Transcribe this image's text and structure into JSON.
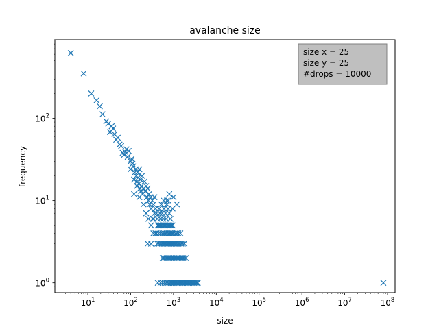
{
  "chart_data": {
    "type": "scatter",
    "title": "avalanche size",
    "xlabel": "size",
    "ylabel": "frequency",
    "xscale": "log",
    "yscale": "log",
    "xlim": [
      1.7,
      150000000
    ],
    "ylim": [
      0.76,
      900
    ],
    "xticks": [
      {
        "value": 10,
        "base": "10",
        "exp": "1"
      },
      {
        "value": 100,
        "base": "10",
        "exp": "2"
      },
      {
        "value": 1000,
        "base": "10",
        "exp": "3"
      },
      {
        "value": 10000,
        "base": "10",
        "exp": "4"
      },
      {
        "value": 100000,
        "base": "10",
        "exp": "5"
      },
      {
        "value": 1000000,
        "base": "10",
        "exp": "6"
      },
      {
        "value": 10000000,
        "base": "10",
        "exp": "7"
      },
      {
        "value": 100000000,
        "base": "10",
        "exp": "8"
      }
    ],
    "yticks": [
      {
        "value": 1,
        "base": "10",
        "exp": "0"
      },
      {
        "value": 10,
        "base": "10",
        "exp": "1"
      },
      {
        "value": 100,
        "base": "10",
        "exp": "2"
      }
    ],
    "marker": "x",
    "color": "#1f77b4",
    "annotation": {
      "location": "upper right",
      "lines": [
        "size x = 25",
        "size y = 25",
        "#drops = 10000"
      ],
      "background": "#bfbfbf"
    },
    "points": [
      [
        4,
        620
      ],
      [
        8,
        350
      ],
      [
        12,
        200
      ],
      [
        16,
        165
      ],
      [
        19,
        140
      ],
      [
        22,
        112
      ],
      [
        27,
        92
      ],
      [
        30,
        86
      ],
      [
        33,
        68
      ],
      [
        36,
        80
      ],
      [
        39,
        75
      ],
      [
        42,
        64
      ],
      [
        46,
        55
      ],
      [
        50,
        58
      ],
      [
        55,
        48
      ],
      [
        60,
        46
      ],
      [
        65,
        38
      ],
      [
        70,
        36
      ],
      [
        75,
        39
      ],
      [
        80,
        42
      ],
      [
        85,
        34
      ],
      [
        90,
        40
      ],
      [
        100,
        30
      ],
      [
        105,
        32
      ],
      [
        110,
        28
      ],
      [
        115,
        26
      ],
      [
        120,
        18
      ],
      [
        125,
        22
      ],
      [
        130,
        24
      ],
      [
        135,
        20
      ],
      [
        140,
        17
      ],
      [
        145,
        22
      ],
      [
        150,
        19
      ],
      [
        155,
        16
      ],
      [
        160,
        24
      ],
      [
        165,
        14
      ],
      [
        170,
        18
      ],
      [
        175,
        13
      ],
      [
        180,
        15
      ],
      [
        185,
        20
      ],
      [
        190,
        12
      ],
      [
        200,
        14
      ],
      [
        210,
        17
      ],
      [
        220,
        13
      ],
      [
        230,
        15
      ],
      [
        240,
        11
      ],
      [
        250,
        14
      ],
      [
        260,
        10
      ],
      [
        270,
        12
      ],
      [
        280,
        9
      ],
      [
        290,
        11
      ],
      [
        300,
        8
      ],
      [
        320,
        10
      ],
      [
        340,
        9
      ],
      [
        360,
        11
      ],
      [
        100,
        24
      ],
      [
        120,
        12
      ],
      [
        140,
        15
      ],
      [
        160,
        11
      ],
      [
        200,
        9
      ],
      [
        230,
        7
      ],
      [
        260,
        6
      ],
      [
        300,
        5
      ],
      [
        340,
        6
      ],
      [
        380,
        4
      ],
      [
        250,
        3
      ],
      [
        300,
        3
      ],
      [
        330,
        6
      ],
      [
        360,
        7
      ],
      [
        380,
        8
      ],
      [
        400,
        7
      ],
      [
        420,
        6
      ],
      [
        440,
        5
      ],
      [
        460,
        8
      ],
      [
        480,
        7
      ],
      [
        500,
        6
      ],
      [
        520,
        9
      ],
      [
        550,
        7
      ],
      [
        580,
        6
      ],
      [
        600,
        8
      ],
      [
        630,
        5
      ],
      [
        650,
        7
      ],
      [
        680,
        6
      ],
      [
        700,
        9
      ],
      [
        750,
        8
      ],
      [
        800,
        7
      ],
      [
        850,
        6
      ],
      [
        900,
        5
      ],
      [
        950,
        8
      ],
      [
        430,
        5
      ],
      [
        460,
        5
      ],
      [
        490,
        5
      ],
      [
        520,
        5
      ],
      [
        560,
        5
      ],
      [
        600,
        5
      ],
      [
        650,
        5
      ],
      [
        700,
        5
      ],
      [
        750,
        5
      ],
      [
        800,
        5
      ],
      [
        850,
        5
      ],
      [
        900,
        5
      ],
      [
        950,
        5
      ],
      [
        340,
        4
      ],
      [
        400,
        4
      ],
      [
        450,
        4
      ],
      [
        500,
        4
      ],
      [
        550,
        4
      ],
      [
        600,
        4
      ],
      [
        650,
        4
      ],
      [
        700,
        4
      ],
      [
        760,
        4
      ],
      [
        820,
        4
      ],
      [
        880,
        4
      ],
      [
        940,
        4
      ],
      [
        1000,
        4
      ],
      [
        1100,
        4
      ],
      [
        1200,
        4
      ],
      [
        1300,
        4
      ],
      [
        1450,
        4
      ],
      [
        420,
        3
      ],
      [
        460,
        3
      ],
      [
        500,
        3
      ],
      [
        540,
        3
      ],
      [
        580,
        3
      ],
      [
        620,
        3
      ],
      [
        660,
        3
      ],
      [
        710,
        3
      ],
      [
        760,
        3
      ],
      [
        810,
        3
      ],
      [
        860,
        3
      ],
      [
        920,
        3
      ],
      [
        980,
        3
      ],
      [
        1050,
        3
      ],
      [
        1120,
        3
      ],
      [
        1200,
        3
      ],
      [
        1300,
        3
      ],
      [
        1400,
        3
      ],
      [
        1520,
        3
      ],
      [
        1650,
        3
      ],
      [
        1800,
        3
      ],
      [
        560,
        2
      ],
      [
        600,
        2
      ],
      [
        650,
        2
      ],
      [
        700,
        2
      ],
      [
        750,
        2
      ],
      [
        800,
        2
      ],
      [
        860,
        2
      ],
      [
        920,
        2
      ],
      [
        990,
        2
      ],
      [
        1050,
        2
      ],
      [
        1120,
        2
      ],
      [
        1200,
        2
      ],
      [
        1280,
        2
      ],
      [
        1370,
        2
      ],
      [
        1460,
        2
      ],
      [
        1560,
        2
      ],
      [
        1670,
        2
      ],
      [
        1800,
        2
      ],
      [
        1950,
        2
      ],
      [
        430,
        1
      ],
      [
        500,
        1
      ],
      [
        560,
        1
      ],
      [
        620,
        1
      ],
      [
        680,
        1
      ],
      [
        740,
        1
      ],
      [
        800,
        1
      ],
      [
        860,
        1
      ],
      [
        920,
        1
      ],
      [
        980,
        1
      ],
      [
        1050,
        1
      ],
      [
        1120,
        1
      ],
      [
        1200,
        1
      ],
      [
        1280,
        1
      ],
      [
        1370,
        1
      ],
      [
        1460,
        1
      ],
      [
        1560,
        1
      ],
      [
        1670,
        1
      ],
      [
        1790,
        1
      ],
      [
        1910,
        1
      ],
      [
        2040,
        1
      ],
      [
        2180,
        1
      ],
      [
        2330,
        1
      ],
      [
        2490,
        1
      ],
      [
        2660,
        1
      ],
      [
        2840,
        1
      ],
      [
        3040,
        1
      ],
      [
        3250,
        1
      ],
      [
        3480,
        1
      ],
      [
        3700,
        1
      ],
      [
        590,
        10
      ],
      [
        700,
        10
      ],
      [
        760,
        10
      ],
      [
        800,
        12
      ],
      [
        1000,
        11
      ],
      [
        1200,
        9
      ],
      [
        80000000,
        1
      ]
    ]
  }
}
